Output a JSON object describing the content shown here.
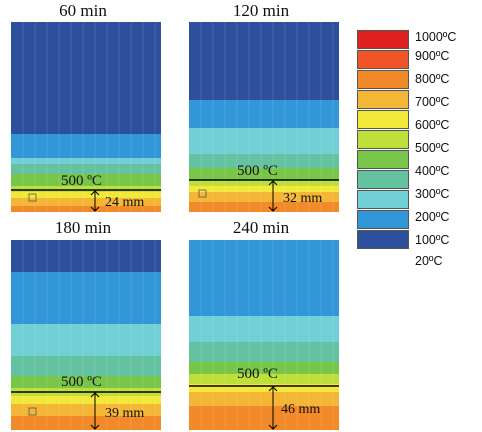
{
  "panels": [
    {
      "title": "60 min",
      "depth_label": "24 mm",
      "iso_label": "500 ºC"
    },
    {
      "title": "120 min",
      "depth_label": "32 mm",
      "iso_label": "500 ºC"
    },
    {
      "title": "180 min",
      "depth_label": "39 mm",
      "iso_label": "500 ºC"
    },
    {
      "title": "240 min",
      "depth_label": "46 mm",
      "iso_label": "500 ºC"
    }
  ],
  "legend": {
    "labels": [
      "1000ºC",
      "900ºC",
      "800ºC",
      "700ºC",
      "600ºC",
      "500ºC",
      "400ºC",
      "300ºC",
      "200ºC",
      "100ºC",
      "20ºC"
    ],
    "colors": [
      "#e0201f",
      "#ef5526",
      "#f28a2a",
      "#f4b636",
      "#f2e83a",
      "#bede3a",
      "#77c64a",
      "#65c2a0",
      "#71d0d6",
      "#3197d8",
      "#2e4f9c"
    ]
  }
}
